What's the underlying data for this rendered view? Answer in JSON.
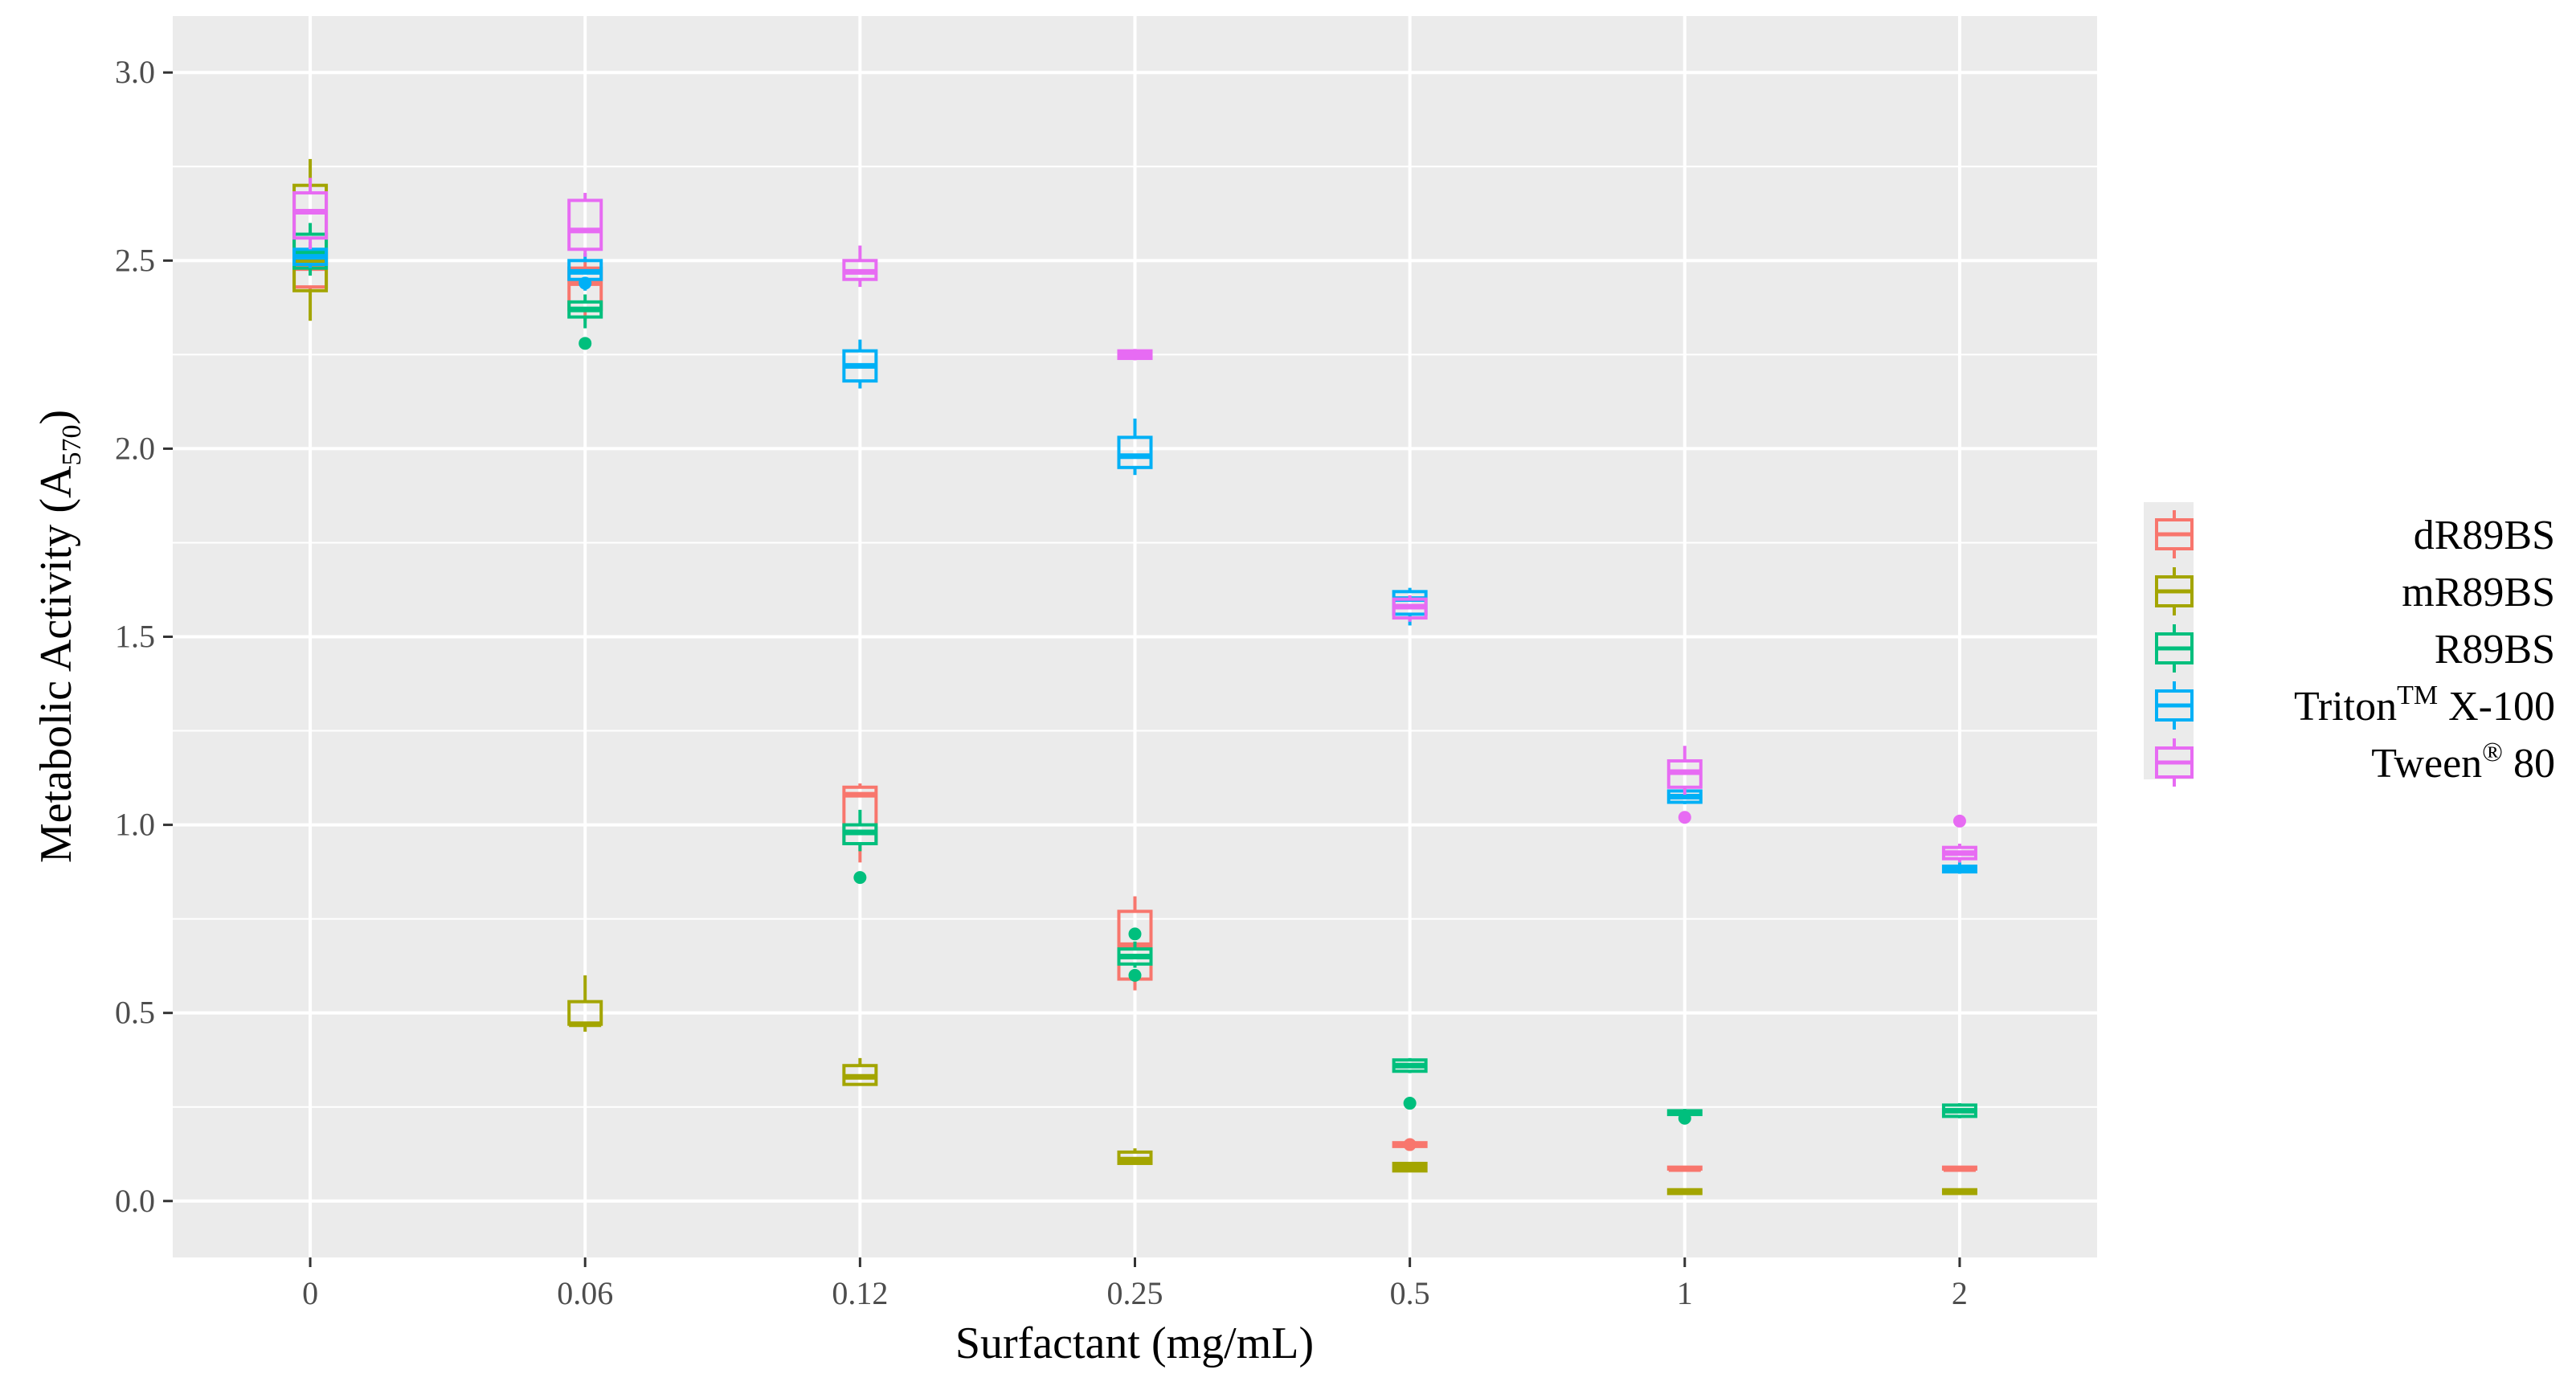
{
  "chart_data": {
    "type": "boxplot",
    "title": "",
    "xlabel": "Surfactant (mg/mL)",
    "ylabel": "Metabolic Activity (A",
    "ylabel_sub": "570",
    "ylabel_close": ")",
    "ylim": [
      -0.15,
      3.15
    ],
    "y_ticks": [
      "0.0",
      "0.5",
      "1.0",
      "1.5",
      "2.0",
      "2.5",
      "3.0"
    ],
    "categories": [
      "0",
      "0.06",
      "0.12",
      "0.25",
      "0.5",
      "1",
      "2"
    ],
    "legend": [
      {
        "label": "dR89BS",
        "color": "#F8766D"
      },
      {
        "label": "mR89BS",
        "color": "#A3A500"
      },
      {
        "label": "R89BS",
        "color": "#00BF7D"
      },
      {
        "label": "Triton",
        "sup": "TM",
        "after": " X-100",
        "color": "#00B0F6"
      },
      {
        "label": "Tween",
        "sup": "®",
        "after": " 80",
        "color": "#E76BF3"
      }
    ],
    "series": [
      {
        "name": "dR89BS",
        "color": "#F8766D",
        "boxes": [
          {
            "cat": 0,
            "lw": 2.42,
            "q1": 2.43,
            "med": 2.48,
            "q3": 2.52,
            "uw": 2.55,
            "out": []
          },
          {
            "cat": 1,
            "lw": 2.34,
            "q1": 2.37,
            "med": 2.44,
            "q3": 2.48,
            "uw": 2.5,
            "out": []
          },
          {
            "cat": 2,
            "lw": 0.9,
            "q1": 0.95,
            "med": 1.08,
            "q3": 1.1,
            "uw": 1.11,
            "out": []
          },
          {
            "cat": 3,
            "lw": 0.56,
            "q1": 0.59,
            "med": 0.68,
            "q3": 0.77,
            "uw": 0.81,
            "out": []
          },
          {
            "cat": 4,
            "lw": 0.14,
            "q1": 0.145,
            "med": 0.15,
            "q3": 0.155,
            "uw": 0.16,
            "out": [
              0.15
            ]
          },
          {
            "cat": 5,
            "lw": 0.085,
            "q1": 0.085,
            "med": 0.085,
            "q3": 0.09,
            "uw": 0.09,
            "out": []
          },
          {
            "cat": 6,
            "lw": 0.085,
            "q1": 0.085,
            "med": 0.085,
            "q3": 0.09,
            "uw": 0.09,
            "out": []
          }
        ]
      },
      {
        "name": "mR89BS",
        "color": "#A3A500",
        "boxes": [
          {
            "cat": 0,
            "lw": 2.34,
            "q1": 2.42,
            "med": 2.5,
            "q3": 2.7,
            "uw": 2.77,
            "out": []
          },
          {
            "cat": 1,
            "lw": 0.45,
            "q1": 0.47,
            "med": 0.47,
            "q3": 0.53,
            "uw": 0.6,
            "out": []
          },
          {
            "cat": 2,
            "lw": 0.31,
            "q1": 0.31,
            "med": 0.33,
            "q3": 0.36,
            "uw": 0.38,
            "out": []
          },
          {
            "cat": 3,
            "lw": 0.1,
            "q1": 0.1,
            "med": 0.11,
            "q3": 0.13,
            "uw": 0.14,
            "out": []
          },
          {
            "cat": 4,
            "lw": 0.08,
            "q1": 0.08,
            "med": 0.09,
            "q3": 0.1,
            "uw": 0.1,
            "out": []
          },
          {
            "cat": 5,
            "lw": 0.02,
            "q1": 0.02,
            "med": 0.025,
            "q3": 0.03,
            "uw": 0.03,
            "out": []
          },
          {
            "cat": 6,
            "lw": 0.02,
            "q1": 0.02,
            "med": 0.025,
            "q3": 0.03,
            "uw": 0.03,
            "out": []
          }
        ]
      },
      {
        "name": "R89BS",
        "color": "#00BF7D",
        "boxes": [
          {
            "cat": 0,
            "lw": 2.46,
            "q1": 2.48,
            "med": 2.52,
            "q3": 2.57,
            "uw": 2.6,
            "out": []
          },
          {
            "cat": 1,
            "lw": 2.32,
            "q1": 2.35,
            "med": 2.37,
            "q3": 2.39,
            "uw": 2.41,
            "out": [
              2.28
            ]
          },
          {
            "cat": 2,
            "lw": 0.93,
            "q1": 0.95,
            "med": 0.98,
            "q3": 1.0,
            "uw": 1.04,
            "out": [
              0.86
            ]
          },
          {
            "cat": 3,
            "lw": 0.62,
            "q1": 0.63,
            "med": 0.65,
            "q3": 0.67,
            "uw": 0.69,
            "out": [
              0.71,
              0.6
            ]
          },
          {
            "cat": 4,
            "lw": 0.34,
            "q1": 0.345,
            "med": 0.36,
            "q3": 0.375,
            "uw": 0.38,
            "out": [
              0.26
            ]
          },
          {
            "cat": 5,
            "lw": 0.23,
            "q1": 0.23,
            "med": 0.235,
            "q3": 0.24,
            "uw": 0.245,
            "out": [
              0.22
            ]
          },
          {
            "cat": 6,
            "lw": 0.22,
            "q1": 0.225,
            "med": 0.24,
            "q3": 0.255,
            "uw": 0.26,
            "out": []
          }
        ]
      },
      {
        "name": "Triton X-100",
        "color": "#00B0F6",
        "boxes": [
          {
            "cat": 0,
            "lw": 2.48,
            "q1": 2.49,
            "med": 2.51,
            "q3": 2.53,
            "uw": 2.54,
            "out": []
          },
          {
            "cat": 1,
            "lw": 2.42,
            "q1": 2.45,
            "med": 2.47,
            "q3": 2.5,
            "uw": 2.52,
            "out": [
              2.44
            ]
          },
          {
            "cat": 2,
            "lw": 2.16,
            "q1": 2.18,
            "med": 2.22,
            "q3": 2.26,
            "uw": 2.29,
            "out": []
          },
          {
            "cat": 3,
            "lw": 1.93,
            "q1": 1.95,
            "med": 1.98,
            "q3": 2.03,
            "uw": 2.08,
            "out": []
          },
          {
            "cat": 4,
            "lw": 1.53,
            "q1": 1.56,
            "med": 1.6,
            "q3": 1.62,
            "uw": 1.63,
            "out": []
          },
          {
            "cat": 5,
            "lw": 1.055,
            "q1": 1.06,
            "med": 1.075,
            "q3": 1.09,
            "uw": 1.095,
            "out": []
          },
          {
            "cat": 6,
            "lw": 0.87,
            "q1": 0.875,
            "med": 0.88,
            "q3": 0.89,
            "uw": 0.9,
            "out": []
          }
        ]
      },
      {
        "name": "Tween 80",
        "color": "#E76BF3",
        "boxes": [
          {
            "cat": 0,
            "lw": 2.53,
            "q1": 2.56,
            "med": 2.63,
            "q3": 2.68,
            "uw": 2.72,
            "out": []
          },
          {
            "cat": 1,
            "lw": 2.51,
            "q1": 2.53,
            "med": 2.58,
            "q3": 2.66,
            "uw": 2.68,
            "out": []
          },
          {
            "cat": 2,
            "lw": 2.43,
            "q1": 2.45,
            "med": 2.47,
            "q3": 2.5,
            "uw": 2.54,
            "out": []
          },
          {
            "cat": 3,
            "lw": 2.235,
            "q1": 2.24,
            "med": 2.25,
            "q3": 2.26,
            "uw": 2.265,
            "out": []
          },
          {
            "cat": 4,
            "lw": 1.54,
            "q1": 1.55,
            "med": 1.58,
            "q3": 1.6,
            "uw": 1.61,
            "out": []
          },
          {
            "cat": 5,
            "lw": 1.08,
            "q1": 1.1,
            "med": 1.14,
            "q3": 1.17,
            "uw": 1.21,
            "out": [
              1.02
            ]
          },
          {
            "cat": 6,
            "lw": 0.9,
            "q1": 0.91,
            "med": 0.925,
            "q3": 0.94,
            "uw": 0.95,
            "out": [
              1.01
            ]
          }
        ]
      }
    ]
  }
}
